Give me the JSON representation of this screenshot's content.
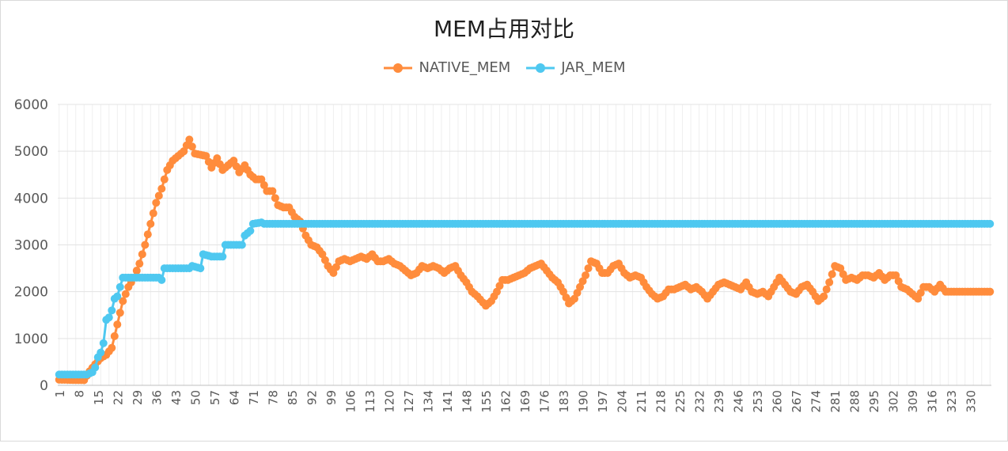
{
  "chart_data": {
    "type": "line",
    "title": "MEM占用对比",
    "xlabel": "",
    "ylabel": "",
    "ylim": [
      0,
      6000
    ],
    "yticks": [
      0,
      1000,
      2000,
      3000,
      4000,
      5000,
      6000
    ],
    "x_count": 337,
    "xtick_labels": [
      "1",
      "8",
      "15",
      "22",
      "29",
      "36",
      "43",
      "50",
      "57",
      "64",
      "71",
      "78",
      "85",
      "92",
      "99",
      "106",
      "113",
      "120",
      "127",
      "134",
      "141",
      "148",
      "155",
      "162",
      "169",
      "176",
      "183",
      "190",
      "197",
      "204",
      "211",
      "218",
      "225",
      "232",
      "239",
      "246",
      "253",
      "260",
      "267",
      "274",
      "281",
      "288",
      "295",
      "302",
      "309",
      "316",
      "323",
      "330"
    ],
    "legend_position": "top",
    "grid": true,
    "series": [
      {
        "name": "NATIVE_MEM",
        "color": "#FF8C3C",
        "keypoints": [
          [
            1,
            120
          ],
          [
            10,
            110
          ],
          [
            12,
            300
          ],
          [
            14,
            450
          ],
          [
            16,
            580
          ],
          [
            18,
            650
          ],
          [
            20,
            800
          ],
          [
            22,
            1300
          ],
          [
            24,
            1800
          ],
          [
            26,
            2100
          ],
          [
            28,
            2300
          ],
          [
            30,
            2600
          ],
          [
            32,
            3000
          ],
          [
            34,
            3450
          ],
          [
            36,
            3900
          ],
          [
            38,
            4200
          ],
          [
            40,
            4600
          ],
          [
            42,
            4800
          ],
          [
            44,
            4900
          ],
          [
            46,
            5000
          ],
          [
            48,
            5250
          ],
          [
            50,
            4950
          ],
          [
            54,
            4900
          ],
          [
            56,
            4650
          ],
          [
            58,
            4850
          ],
          [
            60,
            4600
          ],
          [
            62,
            4700
          ],
          [
            64,
            4800
          ],
          [
            66,
            4550
          ],
          [
            68,
            4700
          ],
          [
            70,
            4500
          ],
          [
            72,
            4400
          ],
          [
            74,
            4400
          ],
          [
            76,
            4150
          ],
          [
            78,
            4150
          ],
          [
            80,
            3850
          ],
          [
            82,
            3800
          ],
          [
            84,
            3800
          ],
          [
            86,
            3600
          ],
          [
            88,
            3500
          ],
          [
            90,
            3200
          ],
          [
            92,
            3000
          ],
          [
            94,
            2950
          ],
          [
            96,
            2800
          ],
          [
            98,
            2550
          ],
          [
            100,
            2400
          ],
          [
            102,
            2650
          ],
          [
            104,
            2700
          ],
          [
            106,
            2650
          ],
          [
            108,
            2700
          ],
          [
            110,
            2750
          ],
          [
            112,
            2700
          ],
          [
            114,
            2800
          ],
          [
            116,
            2650
          ],
          [
            118,
            2650
          ],
          [
            120,
            2700
          ],
          [
            122,
            2600
          ],
          [
            124,
            2550
          ],
          [
            126,
            2450
          ],
          [
            128,
            2350
          ],
          [
            130,
            2400
          ],
          [
            132,
            2550
          ],
          [
            134,
            2500
          ],
          [
            136,
            2550
          ],
          [
            138,
            2500
          ],
          [
            140,
            2400
          ],
          [
            142,
            2500
          ],
          [
            144,
            2550
          ],
          [
            146,
            2350
          ],
          [
            148,
            2200
          ],
          [
            150,
            2000
          ],
          [
            152,
            1900
          ],
          [
            155,
            1700
          ],
          [
            157,
            1800
          ],
          [
            159,
            2000
          ],
          [
            161,
            2250
          ],
          [
            163,
            2250
          ],
          [
            165,
            2300
          ],
          [
            167,
            2350
          ],
          [
            169,
            2400
          ],
          [
            171,
            2500
          ],
          [
            173,
            2550
          ],
          [
            175,
            2600
          ],
          [
            177,
            2450
          ],
          [
            179,
            2300
          ],
          [
            181,
            2200
          ],
          [
            183,
            2000
          ],
          [
            185,
            1750
          ],
          [
            187,
            1850
          ],
          [
            189,
            2100
          ],
          [
            191,
            2350
          ],
          [
            193,
            2650
          ],
          [
            195,
            2600
          ],
          [
            197,
            2400
          ],
          [
            199,
            2400
          ],
          [
            201,
            2550
          ],
          [
            203,
            2600
          ],
          [
            205,
            2400
          ],
          [
            207,
            2300
          ],
          [
            209,
            2350
          ],
          [
            211,
            2300
          ],
          [
            213,
            2100
          ],
          [
            215,
            1950
          ],
          [
            217,
            1850
          ],
          [
            219,
            1900
          ],
          [
            221,
            2050
          ],
          [
            223,
            2050
          ],
          [
            225,
            2100
          ],
          [
            227,
            2150
          ],
          [
            229,
            2050
          ],
          [
            231,
            2100
          ],
          [
            233,
            2000
          ],
          [
            235,
            1850
          ],
          [
            237,
            2000
          ],
          [
            239,
            2150
          ],
          [
            241,
            2200
          ],
          [
            243,
            2150
          ],
          [
            245,
            2100
          ],
          [
            247,
            2050
          ],
          [
            249,
            2200
          ],
          [
            251,
            2000
          ],
          [
            253,
            1950
          ],
          [
            255,
            2000
          ],
          [
            257,
            1900
          ],
          [
            259,
            2100
          ],
          [
            261,
            2300
          ],
          [
            263,
            2150
          ],
          [
            265,
            2000
          ],
          [
            267,
            1950
          ],
          [
            269,
            2100
          ],
          [
            271,
            2150
          ],
          [
            273,
            2000
          ],
          [
            275,
            1800
          ],
          [
            277,
            1900
          ],
          [
            279,
            2200
          ],
          [
            281,
            2550
          ],
          [
            283,
            2500
          ],
          [
            285,
            2250
          ],
          [
            287,
            2300
          ],
          [
            289,
            2250
          ],
          [
            291,
            2350
          ],
          [
            293,
            2350
          ],
          [
            295,
            2300
          ],
          [
            297,
            2400
          ],
          [
            299,
            2250
          ],
          [
            301,
            2350
          ],
          [
            303,
            2350
          ],
          [
            305,
            2100
          ],
          [
            307,
            2050
          ],
          [
            309,
            1950
          ],
          [
            311,
            1850
          ],
          [
            313,
            2100
          ],
          [
            315,
            2100
          ],
          [
            317,
            2000
          ],
          [
            319,
            2150
          ],
          [
            321,
            2000
          ],
          [
            323,
            2000
          ],
          [
            337,
            2000
          ]
        ]
      },
      {
        "name": "JAR_MEM",
        "color": "#4EC8F0",
        "keypoints": [
          [
            1,
            230
          ],
          [
            11,
            230
          ],
          [
            13,
            280
          ],
          [
            14,
            380
          ],
          [
            15,
            600
          ],
          [
            16,
            700
          ],
          [
            17,
            900
          ],
          [
            18,
            1400
          ],
          [
            19,
            1450
          ],
          [
            20,
            1600
          ],
          [
            21,
            1850
          ],
          [
            22,
            1900
          ],
          [
            23,
            2100
          ],
          [
            24,
            2300
          ],
          [
            37,
            2300
          ],
          [
            38,
            2250
          ],
          [
            39,
            2500
          ],
          [
            48,
            2500
          ],
          [
            49,
            2550
          ],
          [
            52,
            2500
          ],
          [
            53,
            2800
          ],
          [
            56,
            2750
          ],
          [
            60,
            2750
          ],
          [
            61,
            3000
          ],
          [
            67,
            3000
          ],
          [
            68,
            3200
          ],
          [
            70,
            3300
          ],
          [
            71,
            3450
          ],
          [
            74,
            3480
          ],
          [
            75,
            3450
          ],
          [
            337,
            3450
          ]
        ]
      }
    ]
  }
}
